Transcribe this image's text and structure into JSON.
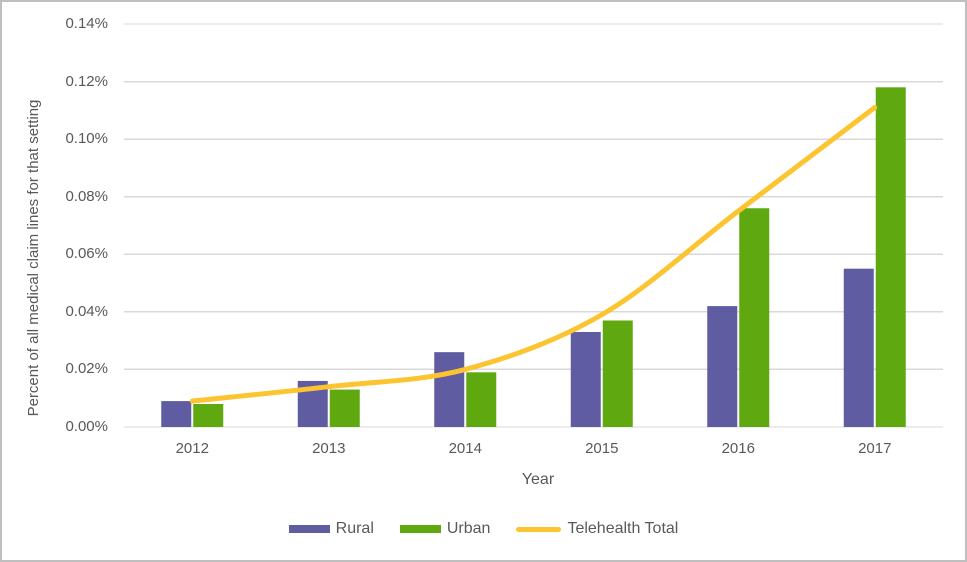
{
  "chart_data": {
    "type": "bar",
    "subtype": "grouped-bars-with-line-overlay",
    "title": "",
    "xlabel": "Year",
    "ylabel": "Percent of all medical claim lines for that setting",
    "categories": [
      "2012",
      "2013",
      "2014",
      "2015",
      "2016",
      "2017"
    ],
    "series": [
      {
        "name": "Rural",
        "type": "bar",
        "color": "#5F5CA2",
        "values": [
          0.009,
          0.016,
          0.026,
          0.033,
          0.042,
          0.055
        ]
      },
      {
        "name": "Urban",
        "type": "bar",
        "color": "#5FA80F",
        "values": [
          0.008,
          0.013,
          0.019,
          0.037,
          0.076,
          0.118
        ]
      },
      {
        "name": "Telehealth Total",
        "type": "line",
        "color": "#FDC431",
        "values": [
          0.009,
          0.014,
          0.02,
          0.039,
          0.075,
          0.111
        ]
      }
    ],
    "value_unit": "percent",
    "ylim": [
      0,
      0.14
    ],
    "ytick_step": 0.02,
    "ytick_labels": [
      "0.00%",
      "0.02%",
      "0.04%",
      "0.06%",
      "0.08%",
      "0.10%",
      "0.12%",
      "0.14%"
    ],
    "grid": "horizontal",
    "legend_position": "bottom",
    "colors": {
      "gridline": "#D9D9D9",
      "axis_text": "#595959",
      "frame_border": "#BFBFBF",
      "background": "#FFFFFF"
    }
  }
}
